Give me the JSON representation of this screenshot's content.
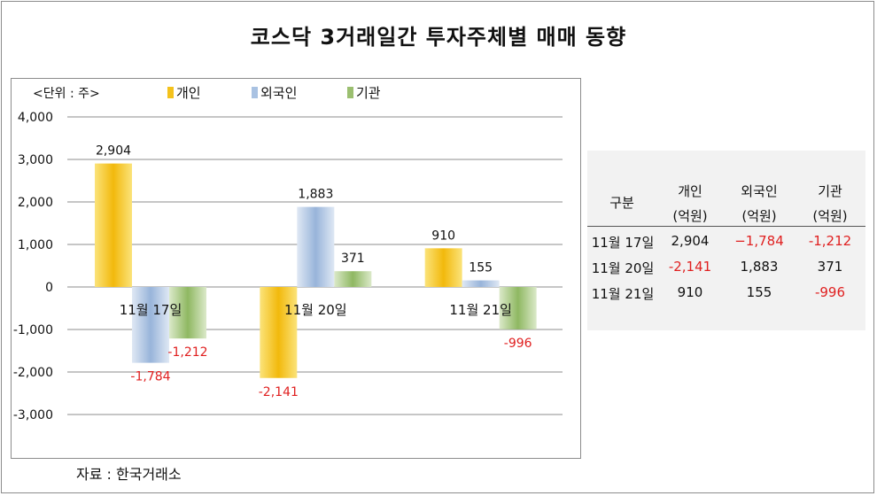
{
  "title": "코스닥 3거래일간 투자주체별 매매 동향",
  "unit_label": "<단위 : 주>",
  "source": "자료 : 한국거래소",
  "colors": {
    "individual": "#f4c21c",
    "foreign": "#a9c2e2",
    "institution": "#9bbf70",
    "negative_text": "#e02020",
    "gridline": "#8c8c8c"
  },
  "chart_data": {
    "type": "bar",
    "categories": [
      "11월 17일",
      "11월 20일",
      "11월 21일"
    ],
    "series": [
      {
        "name": "개인",
        "values": [
          2904,
          -2141,
          910
        ],
        "labels": [
          "2,904",
          "-2,141",
          "910"
        ]
      },
      {
        "name": "외국인",
        "values": [
          -1784,
          1883,
          155
        ],
        "labels": [
          "-1,784",
          "1,883",
          "155"
        ]
      },
      {
        "name": "기관",
        "values": [
          -1212,
          371,
          -996
        ],
        "labels": [
          "-1,212",
          "371",
          "-996"
        ]
      }
    ],
    "ylim": [
      -3000,
      4000
    ],
    "yticks": [
      4000,
      3000,
      2000,
      1000,
      0,
      -1000,
      -2000,
      -3000
    ],
    "ytick_labels": [
      "4,000",
      "3,000",
      "2,000",
      "1,000",
      "0",
      "-1,000",
      "-2,000",
      "-3,000"
    ],
    "grid": true,
    "legend": "top"
  },
  "table": {
    "headers": [
      {
        "line1": "구분",
        "line2": ""
      },
      {
        "line1": "개인",
        "line2": "(억원)"
      },
      {
        "line1": "외국인",
        "line2": "(억원)"
      },
      {
        "line1": "기관",
        "line2": "(억원)"
      }
    ],
    "rows": [
      {
        "date": "11월 17일",
        "individual": "2,904",
        "foreign": "−1,784",
        "institution": "-1,212"
      },
      {
        "date": "11월 20일",
        "individual": "-2,141",
        "foreign": "1,883",
        "institution": "371"
      },
      {
        "date": "11월 21일",
        "individual": "910",
        "foreign": "155",
        "institution": "-996"
      }
    ]
  }
}
